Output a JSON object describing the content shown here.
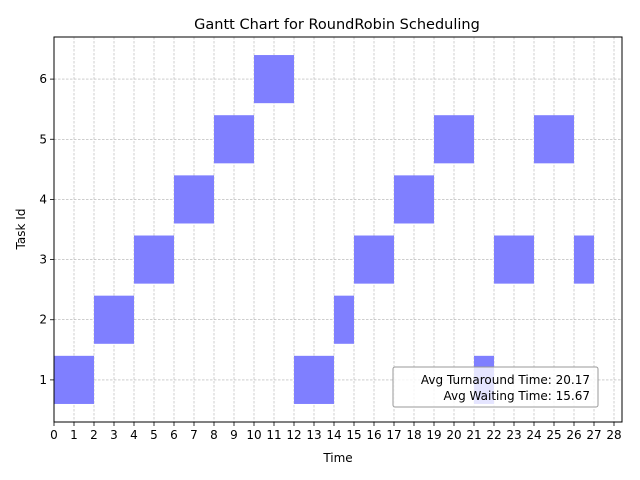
{
  "chart_data": {
    "type": "gantt",
    "title": "Gantt Chart for RoundRobin Scheduling",
    "xlabel": "Time",
    "ylabel": "Task Id",
    "xlim": [
      0,
      28.4
    ],
    "ylim": [
      0.3,
      6.7
    ],
    "x_ticks": [
      0,
      1,
      2,
      3,
      4,
      5,
      6,
      7,
      8,
      9,
      10,
      11,
      12,
      13,
      14,
      15,
      16,
      17,
      18,
      19,
      20,
      21,
      22,
      23,
      24,
      25,
      26,
      27,
      28
    ],
    "y_ticks": [
      1,
      2,
      3,
      4,
      5,
      6
    ],
    "grid": true,
    "bar_color": "#7f7fff",
    "bar_height": 0.8,
    "segments": [
      {
        "task": 1,
        "start": 0,
        "end": 2
      },
      {
        "task": 2,
        "start": 2,
        "end": 4
      },
      {
        "task": 3,
        "start": 4,
        "end": 6
      },
      {
        "task": 4,
        "start": 6,
        "end": 8
      },
      {
        "task": 5,
        "start": 8,
        "end": 10
      },
      {
        "task": 6,
        "start": 10,
        "end": 12
      },
      {
        "task": 1,
        "start": 12,
        "end": 14
      },
      {
        "task": 2,
        "start": 14,
        "end": 15
      },
      {
        "task": 3,
        "start": 15,
        "end": 17
      },
      {
        "task": 4,
        "start": 17,
        "end": 19
      },
      {
        "task": 5,
        "start": 19,
        "end": 21
      },
      {
        "task": 1,
        "start": 21,
        "end": 22
      },
      {
        "task": 3,
        "start": 22,
        "end": 24
      },
      {
        "task": 5,
        "start": 24,
        "end": 26
      },
      {
        "task": 3,
        "start": 26,
        "end": 27
      }
    ],
    "stats": {
      "avg_turnaround_label": "Avg Turnaround Time: 20.17",
      "avg_waiting_label": "Avg Waiting Time: 15.67",
      "placement": "lower-right"
    }
  }
}
